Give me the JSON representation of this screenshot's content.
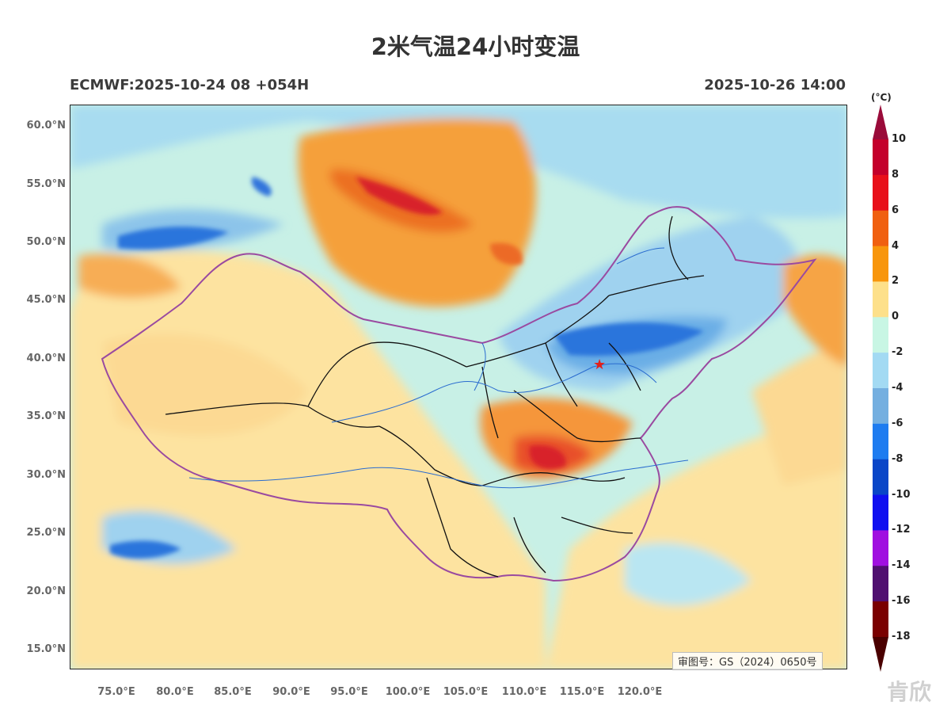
{
  "title": "2米气温24小时变温",
  "model_run": "ECMWF:2025-10-24 08 +054H",
  "valid_time": "2025-10-26 14:00",
  "review_number": "审图号：GS（2024）0650号",
  "watermark": "肯欣",
  "latitude_labels": [
    "60.0°N",
    "55.0°N",
    "50.0°N",
    "45.0°N",
    "40.0°N",
    "35.0°N",
    "30.0°N",
    "25.0°N",
    "20.0°N",
    "15.0°N"
  ],
  "longitude_labels": [
    "75.0°E",
    "80.0°E",
    "85.0°E",
    "90.0°E",
    "95.0°E",
    "100.0°E",
    "105.0°E",
    "110.0°E",
    "115.0°E",
    "120.0°E"
  ],
  "colorbar": {
    "unit": "(°C)",
    "labels": [
      "10",
      "8",
      "6",
      "4",
      "2",
      "0",
      "-2",
      "-4",
      "-6",
      "-8",
      "-10",
      "-12",
      "-14",
      "-16",
      "-18"
    ],
    "colors_top_to_bottom": [
      "#9a0b3a",
      "#c4002b",
      "#e8101a",
      "#f06010",
      "#f8960c",
      "#fde08a",
      "#c8f6e4",
      "#a3daf3",
      "#74afe0",
      "#1e7cf0",
      "#0a46c8",
      "#1010f0",
      "#a010e0",
      "#501070",
      "#7a0000",
      "#4a0000"
    ]
  },
  "legend_marker": "★"
}
